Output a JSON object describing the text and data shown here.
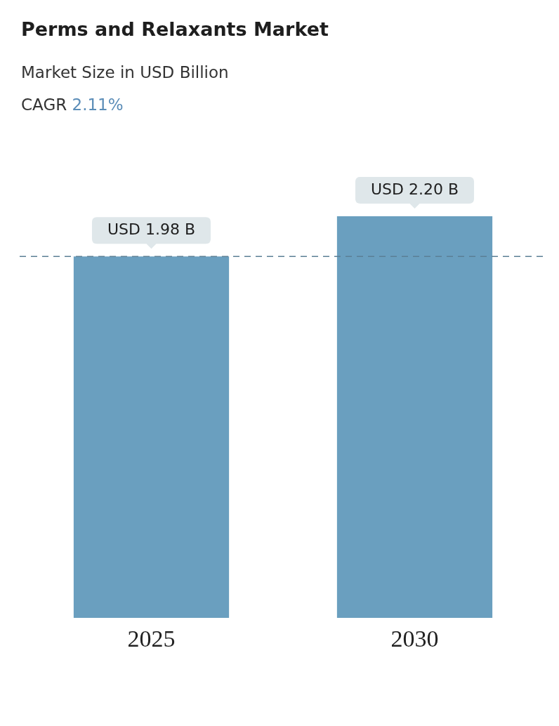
{
  "chart_data": {
    "type": "bar",
    "title": "Perms and Relaxants Market",
    "subtitle": "Market Size in USD Billion",
    "annotations": [
      "CAGR 2.11%"
    ],
    "categories": [
      "2025",
      "2030"
    ],
    "values": [
      1.98,
      2.2
    ],
    "value_labels": [
      "USD 1.98 B",
      "USD 2.20 B"
    ],
    "color": "#6a9fbf",
    "tick_labels": "x",
    "grid": false,
    "legend": false,
    "ref_lines": [
      {
        "axis": "y",
        "value": 1.98,
        "color": "#5b7f95",
        "line_style": "dashed"
      }
    ]
  }
}
